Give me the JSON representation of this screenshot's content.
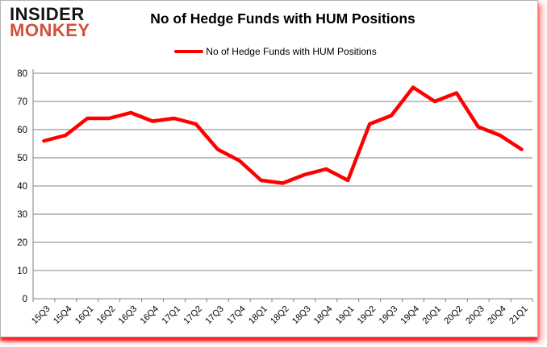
{
  "logo": {
    "line1": "INSIDER",
    "line2": "MONKEY",
    "color_top": "#161413",
    "color_bottom": "#d0503c"
  },
  "header": {
    "title": "No of Hedge Funds with HUM Positions"
  },
  "legend": {
    "label": "No of Hedge Funds with HUM Positions",
    "swatch_color": "#ff0000"
  },
  "chart_data": {
    "type": "line",
    "title": "No of Hedge Funds with HUM Positions",
    "categories": [
      "15Q3",
      "15Q4",
      "16Q1",
      "16Q2",
      "16Q3",
      "16Q4",
      "17Q1",
      "17Q2",
      "17Q3",
      "17Q4",
      "18Q1",
      "18Q2",
      "18Q3",
      "18Q4",
      "19Q1",
      "19Q2",
      "19Q3",
      "19Q4",
      "20Q1",
      "20Q2",
      "20Q3",
      "20Q4",
      "21Q1"
    ],
    "series": [
      {
        "name": "No of Hedge Funds with HUM Positions",
        "color": "#ff0000",
        "values": [
          56,
          58,
          64,
          64,
          66,
          63,
          64,
          62,
          53,
          49,
          42,
          41,
          44,
          46,
          42,
          62,
          65,
          75,
          70,
          73,
          61,
          58,
          53
        ]
      }
    ],
    "xlabel": "",
    "ylabel": "",
    "ylim": [
      0,
      80
    ],
    "ytick_interval": 10,
    "yticks": [
      0,
      10,
      20,
      30,
      40,
      50,
      60,
      70,
      80
    ],
    "grid": "horizontal-only",
    "grid_color": "#808080",
    "axis_color": "#808080",
    "tick_label_color": "#000000",
    "legend_position": "top-center"
  }
}
